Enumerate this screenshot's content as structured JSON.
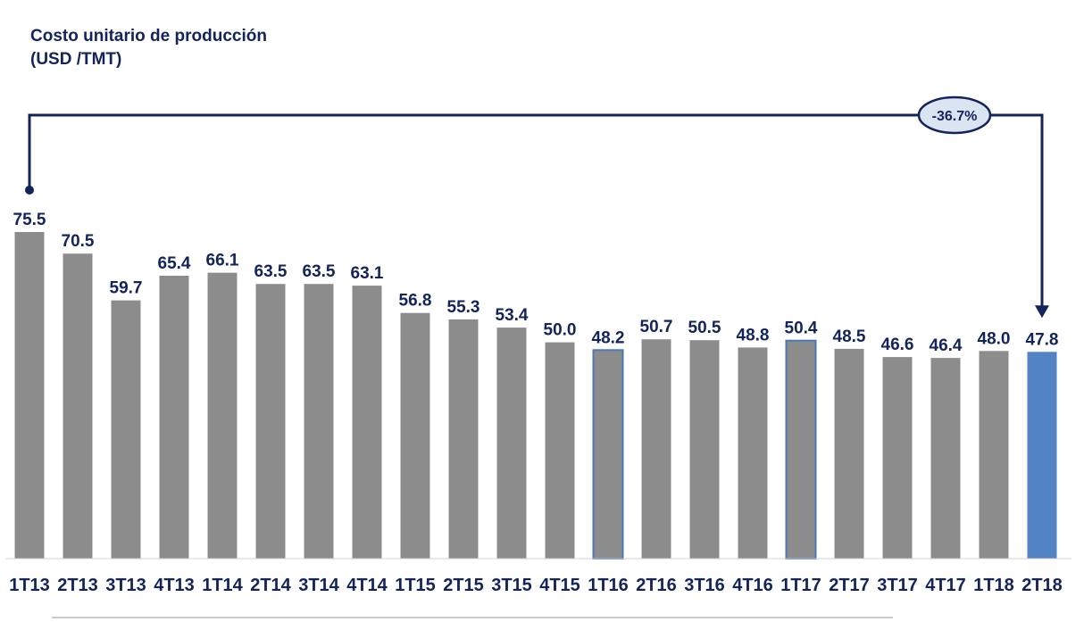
{
  "chart_data": {
    "type": "bar",
    "title": "Costo unitario de producción",
    "subtitle": "(USD /TMT)",
    "categories": [
      "1T13",
      "2T13",
      "3T13",
      "4T13",
      "1T14",
      "2T14",
      "3T14",
      "4T14",
      "1T15",
      "2T15",
      "3T15",
      "4T15",
      "1T16",
      "2T16",
      "3T16",
      "4T16",
      "1T17",
      "2T17",
      "3T17",
      "4T17",
      "1T18",
      "2T18"
    ],
    "values": [
      75.5,
      70.5,
      59.7,
      65.4,
      66.1,
      63.5,
      63.5,
      63.1,
      56.8,
      55.3,
      53.4,
      50.0,
      48.2,
      50.7,
      50.5,
      48.8,
      50.4,
      48.5,
      46.6,
      46.4,
      48.0,
      47.8
    ],
    "value_labels": [
      "75.5",
      "70.5",
      "59.7",
      "65.4",
      "66.1",
      "63.5",
      "63.5",
      "63.1",
      "56.8",
      "55.3",
      "53.4",
      "50.0",
      "48.2",
      "50.7",
      "50.5",
      "48.8",
      "50.4",
      "48.5",
      "46.6",
      "46.4",
      "48.0",
      "47.8"
    ],
    "ylim": [
      0,
      80
    ],
    "grid": false,
    "legend": "none",
    "highlight_outline_indices": [
      12,
      16
    ],
    "highlight_fill_index": 21,
    "annotation": {
      "text": "-36.7%",
      "from_index": 0,
      "to_index": 21
    },
    "colors": {
      "bar": "#8c8c8c",
      "highlight": "#5283c4",
      "outline": "#4a78b8",
      "text": "#13235b",
      "connector": "#13235b",
      "ellipse_fill": "#dbe5f1"
    }
  }
}
